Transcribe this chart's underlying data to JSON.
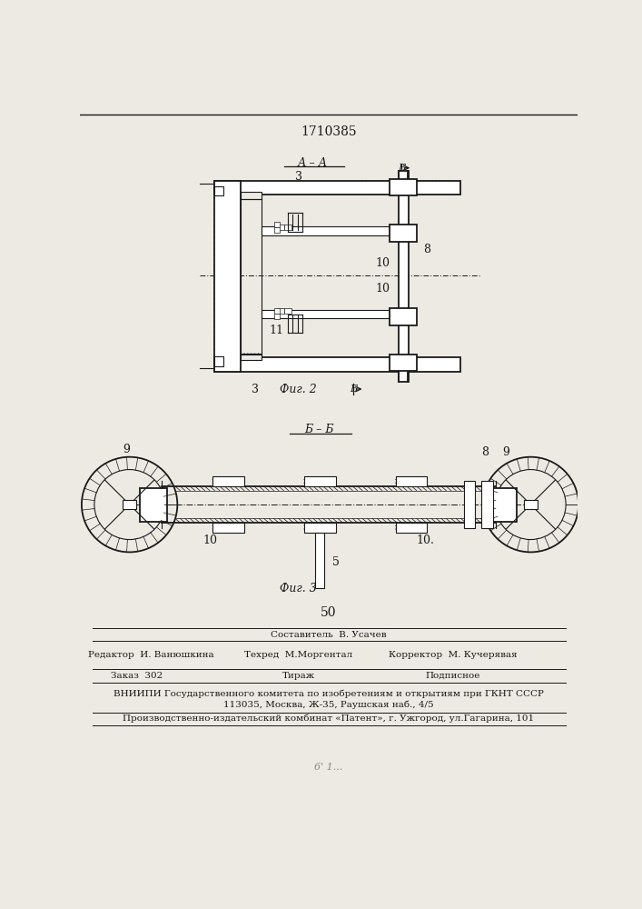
{
  "patent_number": "1710385",
  "bg_color": "#ede9e3",
  "line_color": "#1a1a1a",
  "fig_width": 7.07,
  "fig_height": 10.0,
  "footer_texts": {
    "editor": "Редактор  И. Ванюшкина",
    "composer": "Составитель  В. Усачев",
    "techred": "Техред  М.Моргентал",
    "corrector": "Корректор  М. Кучерявая",
    "zakaz": "Заказ  302",
    "tirazh": "Тираж",
    "podpisnoe": "Подписное",
    "vniiipi": "ВНИИПИ Государственного комитета по изобретениям и открытиям при ГКНТ СССР",
    "address": "113035, Москва, Ж-35, Раушская наб., 4/5",
    "production": "Производственно-издательский комбинат «Патент», г. Ужгород, ул.Гагарина, 101"
  }
}
